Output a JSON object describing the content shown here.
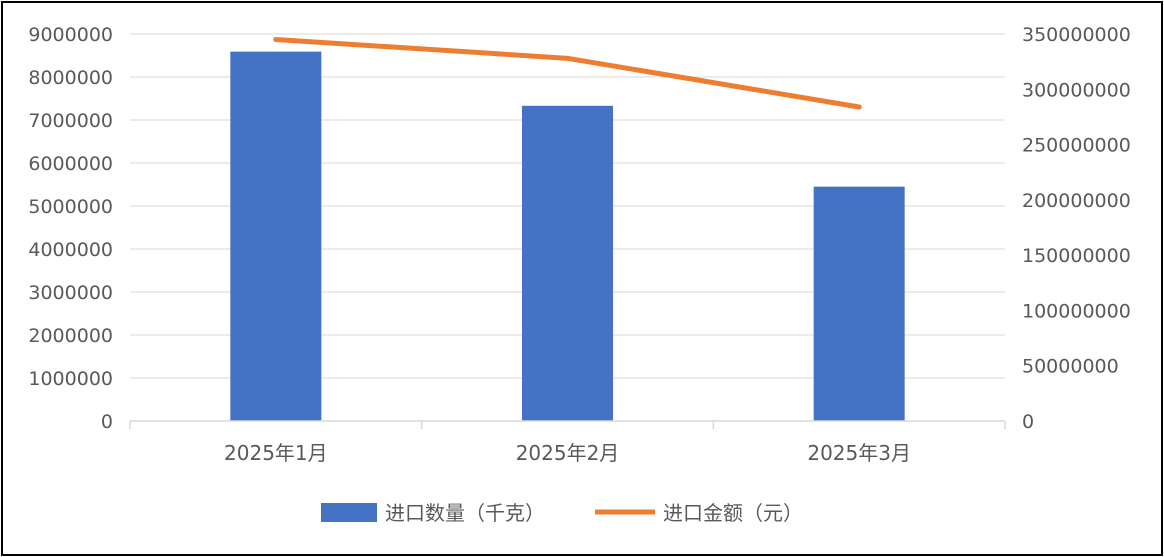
{
  "chart_data": {
    "type": "bar",
    "categories": [
      "2025年1月",
      "2025年2月",
      "2025年3月"
    ],
    "series": [
      {
        "name": "进口数量（千克）",
        "type": "bar",
        "axis": "left",
        "color": "#4472C4",
        "values": [
          8590000,
          7330000,
          5450000
        ]
      },
      {
        "name": "进口金额（元）",
        "type": "line",
        "axis": "right",
        "color": "#ED7D31",
        "values": [
          345000000,
          328000000,
          284000000
        ]
      }
    ],
    "y_left": {
      "min": 0,
      "max": 9000000,
      "step": 1000000,
      "ticks": [
        "0",
        "1000000",
        "2000000",
        "3000000",
        "4000000",
        "5000000",
        "6000000",
        "7000000",
        "8000000",
        "9000000"
      ]
    },
    "y_right": {
      "min": 0,
      "max": 350000000,
      "step": 50000000,
      "ticks": [
        "0",
        "50000000",
        "100000000",
        "150000000",
        "200000000",
        "250000000",
        "300000000",
        "350000000"
      ]
    },
    "title": "",
    "xlabel": "",
    "ylabel": "",
    "grid": true,
    "legend": "bottom-center"
  }
}
